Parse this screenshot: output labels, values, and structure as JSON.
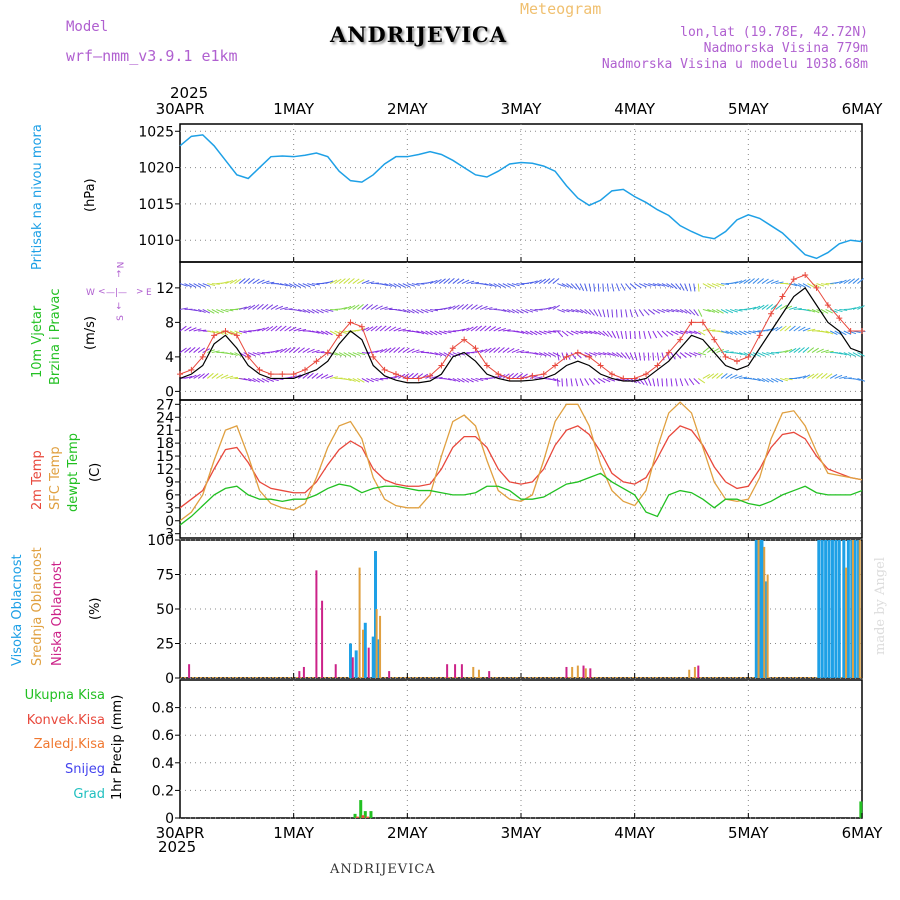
{
  "header": {
    "model_label": "Model",
    "model_value": "wrf—nmm_v3.9.1  e1km",
    "title": "ANDRIJEVICA",
    "meteogram": "Meteogram",
    "lonlat": "lon,lat (19.78E, 42.72N)",
    "elevation": "Nadmorska Visina 779m",
    "model_elevation": "Nadmorska Visina u modelu 1038.68m"
  },
  "footer": {
    "station": "ANDRIJEVICA",
    "credit": "made by Angel"
  },
  "time_axis": {
    "year": "2025",
    "labels": [
      "30APR",
      "1MAY",
      "2MAY",
      "3MAY",
      "4MAY",
      "5MAY",
      "6MAY"
    ]
  },
  "panel_labels": {
    "pressure": [
      "Pritisak na nivou mora",
      "(hPa)"
    ],
    "wind": [
      "10m Vjetar",
      "Brzina i Pravac",
      "(m/s)"
    ],
    "compass": {
      "n": "N",
      "s": "S",
      "w": "W",
      "e": "E"
    },
    "temp": [
      "2m Temp",
      "SFC Temp",
      "dewpt Temp",
      "(C)"
    ],
    "cloud": [
      "Visoka Oblacnost",
      "Srednja Oblacnost",
      "Niska Oblacnost",
      "(%)"
    ],
    "precip": [
      "Ukupna Kisa",
      "Konvek.Kisa",
      "Zaledj.Kisa",
      "Snijeg",
      "Grad",
      "1hr Precip (mm)"
    ]
  },
  "colors": {
    "pressure": "#1ea0e6",
    "wind_speed": "#000000",
    "wind_gust": "#e8483c",
    "temp_2m": "#e8483c",
    "temp_sfc": "#e0a040",
    "temp_dew": "#22c022",
    "cloud_high": "#1ea0e6",
    "cloud_mid": "#e0a040",
    "cloud_low": "#cc2288",
    "precip_total": "#22c022",
    "precip_conv": "#e8483c",
    "precip_frozen": "#f07830",
    "precip_snow": "#4444ee",
    "precip_hail": "#22c0c0",
    "purple_text": "#b060d0"
  },
  "chart_data": [
    {
      "type": "line",
      "name": "pressure",
      "ylim": [
        1007,
        1026
      ],
      "yticks": [
        1010,
        1015,
        1020,
        1025
      ],
      "x_days": [
        0,
        0.1,
        0.2,
        0.3,
        0.4,
        0.5,
        0.6,
        0.7,
        0.8,
        0.9,
        1.0,
        1.1,
        1.2,
        1.3,
        1.4,
        1.5,
        1.6,
        1.7,
        1.8,
        1.9,
        2.0,
        2.1,
        2.2,
        2.3,
        2.4,
        2.5,
        2.6,
        2.7,
        2.8,
        2.9,
        3.0,
        3.1,
        3.2,
        3.3,
        3.4,
        3.5,
        3.6,
        3.7,
        3.8,
        3.9,
        4.0,
        4.1,
        4.2,
        4.3,
        4.4,
        4.5,
        4.6,
        4.7,
        4.8,
        4.9,
        5.0,
        5.1,
        5.2,
        5.3,
        5.4,
        5.5,
        5.6,
        5.7,
        5.8,
        5.9,
        6.0
      ],
      "values": [
        1023,
        1024.3,
        1024.5,
        1023,
        1021,
        1019,
        1018.5,
        1020,
        1021.5,
        1021.6,
        1021.5,
        1021.7,
        1022,
        1021.5,
        1019.5,
        1018.2,
        1018,
        1019,
        1020.5,
        1021.5,
        1021.5,
        1021.8,
        1022.2,
        1021.8,
        1021,
        1020,
        1019,
        1018.7,
        1019.5,
        1020.5,
        1020.7,
        1020.6,
        1020.2,
        1019.5,
        1017.5,
        1015.8,
        1014.8,
        1015.5,
        1016.8,
        1017,
        1016,
        1015.2,
        1014.2,
        1013.4,
        1012,
        1011.2,
        1010.5,
        1010.2,
        1011.2,
        1012.8,
        1013.5,
        1013,
        1012,
        1011,
        1009.5,
        1008,
        1007.5,
        1008.3,
        1009.5,
        1010,
        1009.8
      ]
    },
    {
      "type": "line",
      "name": "wind",
      "ylim": [
        -1,
        15
      ],
      "yticks": [
        0,
        4,
        8,
        12
      ],
      "series": [
        {
          "key": "speed",
          "x_days": [
            0,
            0.1,
            0.2,
            0.3,
            0.4,
            0.5,
            0.6,
            0.7,
            0.8,
            0.9,
            1.0,
            1.1,
            1.2,
            1.3,
            1.4,
            1.5,
            1.6,
            1.7,
            1.8,
            1.9,
            2.0,
            2.1,
            2.2,
            2.3,
            2.4,
            2.5,
            2.6,
            2.7,
            2.8,
            2.9,
            3.0,
            3.1,
            3.2,
            3.3,
            3.4,
            3.5,
            3.6,
            3.7,
            3.8,
            3.9,
            4.0,
            4.1,
            4.2,
            4.3,
            4.4,
            4.5,
            4.6,
            4.7,
            4.8,
            4.9,
            5.0,
            5.1,
            5.2,
            5.3,
            5.4,
            5.5,
            5.6,
            5.7,
            5.8,
            5.9,
            6.0
          ],
          "values": [
            1.5,
            2,
            3,
            5.5,
            6.5,
            5,
            3,
            2,
            1.5,
            1.5,
            1.5,
            2,
            2.5,
            3.5,
            5.5,
            7,
            6,
            3,
            1.8,
            1.3,
            1,
            1,
            1.2,
            2,
            4,
            4.5,
            3.5,
            2,
            1.5,
            1.2,
            1.2,
            1.3,
            1.5,
            2,
            3,
            3.5,
            3,
            2,
            1.5,
            1.2,
            1.2,
            1.5,
            2.5,
            3.5,
            5,
            6.5,
            6,
            4.5,
            3,
            2.5,
            3,
            5,
            7,
            9,
            11,
            12,
            10,
            8,
            7,
            5,
            4.5
          ]
        },
        {
          "key": "gust",
          "x_days": [
            0,
            0.1,
            0.2,
            0.3,
            0.4,
            0.5,
            0.6,
            0.7,
            0.8,
            0.9,
            1.0,
            1.1,
            1.2,
            1.3,
            1.4,
            1.5,
            1.6,
            1.7,
            1.8,
            1.9,
            2.0,
            2.1,
            2.2,
            2.3,
            2.4,
            2.5,
            2.6,
            2.7,
            2.8,
            2.9,
            3.0,
            3.1,
            3.2,
            3.3,
            3.4,
            3.5,
            3.6,
            3.7,
            3.8,
            3.9,
            4.0,
            4.1,
            4.2,
            4.3,
            4.4,
            4.5,
            4.6,
            4.7,
            4.8,
            4.9,
            5.0,
            5.1,
            5.2,
            5.3,
            5.4,
            5.5,
            5.6,
            5.7,
            5.8,
            5.9,
            6.0
          ],
          "values": [
            2,
            2.5,
            4,
            6.5,
            7,
            6.5,
            4,
            2.5,
            2,
            2,
            2,
            2.5,
            3.5,
            4.5,
            6.5,
            8,
            7.5,
            4,
            2.5,
            2,
            1.5,
            1.5,
            1.8,
            3,
            5,
            6,
            5,
            3,
            2,
            1.5,
            1.5,
            1.8,
            2,
            3,
            4,
            4.5,
            4,
            3,
            2,
            1.5,
            1.5,
            2,
            3,
            4.5,
            6,
            8,
            8,
            6,
            4,
            3.5,
            4,
            6.5,
            9,
            11,
            13,
            13.5,
            12,
            10,
            8.5,
            7,
            7
          ]
        }
      ]
    },
    {
      "type": "line",
      "name": "temperature",
      "ylim": [
        -4,
        28
      ],
      "yticks": [
        -3,
        0,
        3,
        6,
        9,
        12,
        15,
        18,
        21,
        24,
        27
      ],
      "x_days": [
        0,
        0.1,
        0.2,
        0.3,
        0.4,
        0.5,
        0.6,
        0.7,
        0.8,
        0.9,
        1.0,
        1.1,
        1.2,
        1.3,
        1.4,
        1.5,
        1.6,
        1.7,
        1.8,
        1.9,
        2.0,
        2.1,
        2.2,
        2.3,
        2.4,
        2.5,
        2.6,
        2.7,
        2.8,
        2.9,
        3.0,
        3.1,
        3.2,
        3.3,
        3.4,
        3.5,
        3.6,
        3.7,
        3.8,
        3.9,
        4.0,
        4.1,
        4.2,
        4.3,
        4.4,
        4.5,
        4.6,
        4.7,
        4.8,
        4.9,
        5.0,
        5.1,
        5.2,
        5.3,
        5.4,
        5.5,
        5.6,
        5.7,
        5.8,
        5.9,
        6.0
      ],
      "series": [
        {
          "key": "t2m",
          "values": [
            3,
            5,
            7,
            12,
            16.5,
            17,
            13.5,
            9,
            7.5,
            7,
            6.5,
            6.5,
            9,
            13,
            16.5,
            18.5,
            17,
            12,
            9.5,
            8.5,
            8,
            8,
            8.5,
            12,
            17,
            19.5,
            19.5,
            17,
            12,
            9,
            8.5,
            9,
            12,
            17.5,
            21,
            22,
            20,
            16,
            11,
            9,
            8.5,
            10,
            14.5,
            19.5,
            22,
            21,
            17.5,
            12.5,
            9,
            7.5,
            8,
            12,
            17,
            20,
            20.5,
            19,
            15,
            12,
            11,
            10,
            9.5
          ]
        },
        {
          "key": "tsfc",
          "values": [
            0,
            2,
            6,
            14,
            21,
            22,
            15,
            7,
            4,
            3,
            2.5,
            4,
            10,
            17,
            22,
            23,
            19,
            10,
            5,
            3.5,
            3,
            3,
            6,
            15,
            23,
            24.5,
            22,
            14,
            7,
            5,
            4.5,
            6,
            14,
            23,
            27,
            27,
            22,
            13,
            7,
            4.5,
            3.5,
            7,
            17,
            25,
            27.5,
            25,
            17,
            9,
            5,
            4.5,
            5,
            10,
            19,
            25,
            25.5,
            22,
            16,
            11,
            10.5,
            10,
            9.5
          ]
        },
        {
          "key": "tdew",
          "values": [
            -1,
            1,
            3.5,
            6,
            7.5,
            8,
            6,
            5,
            5,
            4.5,
            5,
            5,
            6,
            7.5,
            8.5,
            8,
            6.5,
            7.5,
            8,
            8,
            7.5,
            7,
            7,
            6.5,
            6,
            6,
            6.5,
            8,
            8,
            7,
            5,
            5,
            5.5,
            7,
            8.5,
            9,
            10,
            11,
            9,
            7.5,
            6,
            2,
            1,
            6,
            7,
            6.5,
            5,
            3,
            5,
            5,
            4,
            3.5,
            4.5,
            6,
            7,
            8,
            6.5,
            6,
            6,
            6,
            7
          ]
        }
      ]
    },
    {
      "type": "bar",
      "name": "cloud",
      "ylim": [
        0,
        100
      ],
      "yticks": [
        0,
        25,
        50,
        75,
        100
      ],
      "series": [
        {
          "key": "high",
          "bars": [
            [
              1.5,
              25
            ],
            [
              1.55,
              20
            ],
            [
              1.63,
              40
            ],
            [
              1.7,
              30
            ],
            [
              1.72,
              92
            ],
            [
              1.74,
              28
            ],
            [
              5.07,
              100
            ],
            [
              5.1,
              100
            ],
            [
              5.12,
              100
            ],
            [
              5.15,
              70
            ],
            [
              5.62,
              100
            ],
            [
              5.65,
              100
            ],
            [
              5.68,
              100
            ],
            [
              5.71,
              100
            ],
            [
              5.74,
              100
            ],
            [
              5.77,
              100
            ],
            [
              5.8,
              100
            ],
            [
              5.84,
              100
            ],
            [
              5.88,
              100
            ],
            [
              5.91,
              100
            ],
            [
              5.94,
              100
            ],
            [
              5.97,
              100
            ]
          ]
        },
        {
          "key": "mid",
          "bars": [
            [
              1.58,
              80
            ],
            [
              1.61,
              35
            ],
            [
              1.73,
              50
            ],
            [
              1.76,
              45
            ],
            [
              2.58,
              8
            ],
            [
              2.63,
              6
            ],
            [
              3.45,
              8
            ],
            [
              3.5,
              9
            ],
            [
              3.57,
              7
            ],
            [
              4.48,
              6
            ],
            [
              4.53,
              8
            ],
            [
              5.09,
              100
            ],
            [
              5.14,
              95
            ],
            [
              5.17,
              75
            ],
            [
              5.86,
              80
            ],
            [
              5.92,
              100
            ],
            [
              5.98,
              100
            ]
          ]
        },
        {
          "key": "low",
          "bars": [
            [
              0.08,
              10
            ],
            [
              1.05,
              5
            ],
            [
              1.09,
              8
            ],
            [
              1.2,
              78
            ],
            [
              1.25,
              56
            ],
            [
              1.37,
              10
            ],
            [
              1.52,
              15
            ],
            [
              1.66,
              22
            ],
            [
              1.84,
              5
            ],
            [
              2.35,
              10
            ],
            [
              2.42,
              10
            ],
            [
              2.48,
              10
            ],
            [
              2.72,
              5
            ],
            [
              3.4,
              8
            ],
            [
              3.55,
              9
            ],
            [
              3.61,
              7
            ],
            [
              4.56,
              9
            ]
          ]
        }
      ]
    },
    {
      "type": "bar",
      "name": "precipitation",
      "ylim": [
        0,
        1.0
      ],
      "yticks": [
        0,
        0.2,
        0.4,
        0.6,
        0.8
      ],
      "series": [
        {
          "key": "total",
          "bars": [
            [
              1.54,
              0.03
            ],
            [
              1.59,
              0.13
            ],
            [
              1.63,
              0.05
            ],
            [
              1.68,
              0.05
            ],
            [
              5.99,
              0.12
            ]
          ]
        },
        {
          "key": "convective",
          "bars": [
            [
              1.56,
              0.01
            ],
            [
              1.61,
              0.02
            ],
            [
              1.65,
              0.01
            ]
          ]
        }
      ]
    }
  ]
}
